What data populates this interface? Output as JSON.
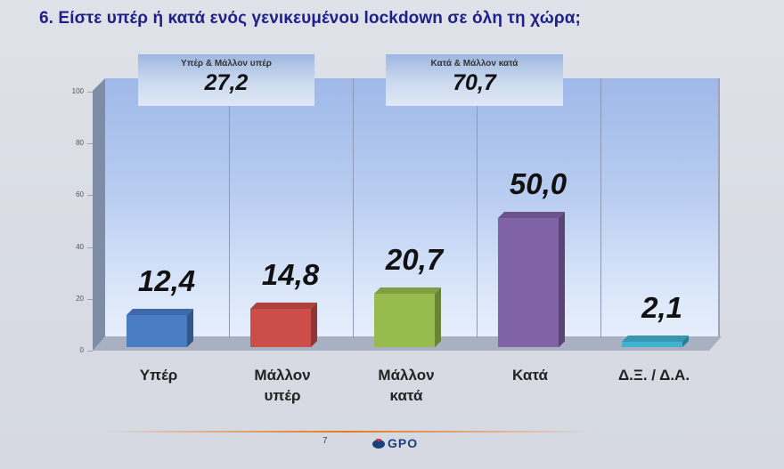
{
  "slide": {
    "title": "6. Είστε υπέρ ή κατά ενός γενικευμένου lockdown σε όλη τη χώρα;",
    "page_number": "7",
    "logo_text": "GPO",
    "footer_line_color": "#e8781e"
  },
  "summaries": [
    {
      "label": "Υπέρ & Μάλλον υπέρ",
      "value": "27,2"
    },
    {
      "label": "Κατά & Μάλλον κατά",
      "value": "70,7"
    }
  ],
  "chart_data": {
    "type": "bar",
    "title": "6. Είστε υπέρ ή κατά ενός γενικευμένου lockdown σε όλη τη χώρα;",
    "categories": [
      "Υπέρ",
      "Μάλλον υπέρ",
      "Μάλλον κατά",
      "Κατά",
      "Δ.Ξ. / Δ.Α."
    ],
    "category_lines": [
      [
        "Υπέρ"
      ],
      [
        "Μάλλον",
        "υπέρ"
      ],
      [
        "Μάλλον",
        "κατά"
      ],
      [
        "Κατά"
      ],
      [
        "Δ.Ξ. / Δ.Α."
      ]
    ],
    "values": [
      12.4,
      14.8,
      20.7,
      50.0,
      2.1
    ],
    "value_labels": [
      "12,4",
      "14,8",
      "20,7",
      "50,0",
      "2,1"
    ],
    "colors": [
      "#4a7cc4",
      "#cc4d4a",
      "#98bb4e",
      "#8062a6",
      "#3fb3cf"
    ],
    "xlabel": "",
    "ylabel": "",
    "ylim": [
      0,
      100
    ],
    "yticks": [
      0,
      20,
      40,
      60,
      80,
      100
    ],
    "grid": "vertical",
    "style": "3d-column",
    "annotations": [
      {
        "text": "Υπέρ & Μάλλον υπέρ",
        "value": "27,2"
      },
      {
        "text": "Κατά & Μάλλον κατά",
        "value": "70,7"
      }
    ]
  }
}
